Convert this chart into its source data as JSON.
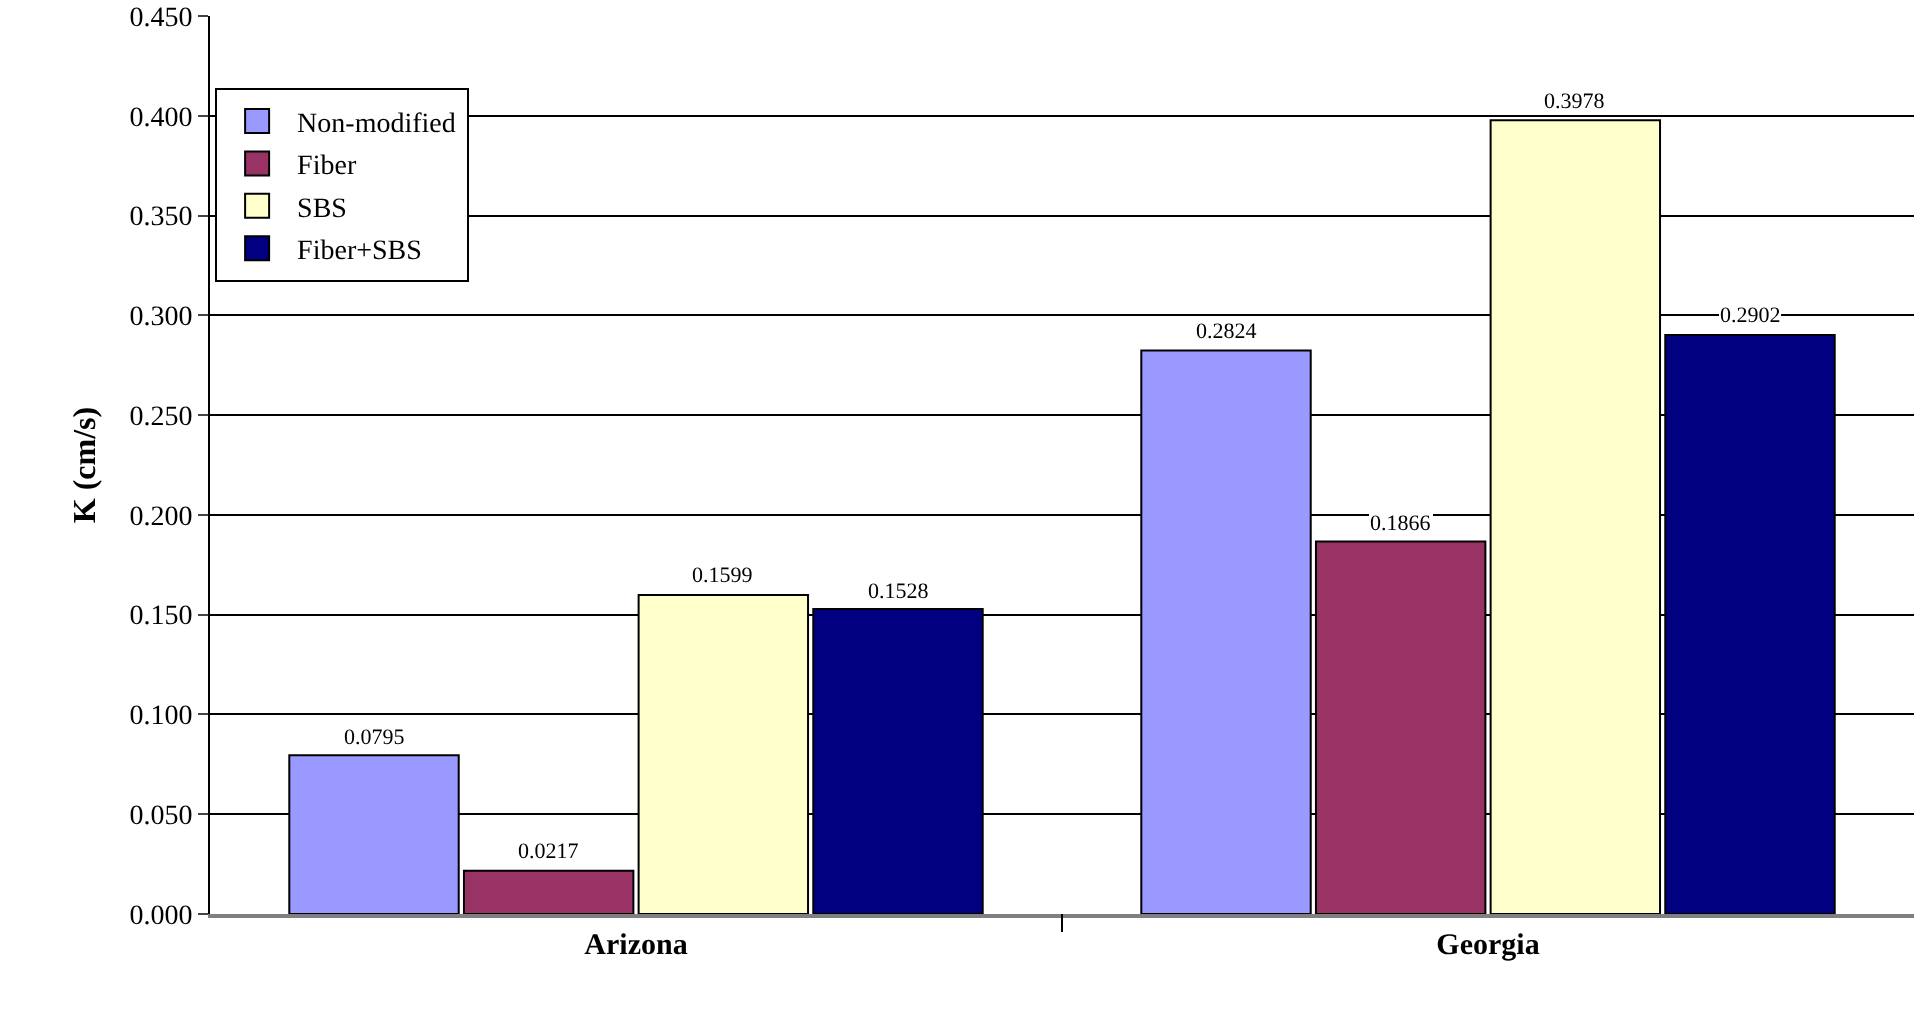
{
  "chart_data": {
    "type": "bar",
    "ylabel": "K (cm/s)",
    "categories": [
      "Arizona",
      "Georgia"
    ],
    "series": [
      {
        "name": "Non-modified",
        "color": "#9999ff",
        "values": [
          0.0795,
          0.2824
        ]
      },
      {
        "name": "Fiber",
        "color": "#993366",
        "values": [
          0.0217,
          0.1866
        ]
      },
      {
        "name": "SBS",
        "color": "#ffffcc",
        "values": [
          0.1599,
          0.3978
        ]
      },
      {
        "name": "Fiber+SBS",
        "color": "#000080",
        "values": [
          0.1528,
          0.2902
        ]
      }
    ],
    "ylim": [
      0,
      0.45
    ],
    "yticks": [
      "0.000",
      "0.050",
      "0.100",
      "0.150",
      "0.200",
      "0.250",
      "0.300",
      "0.350",
      "0.400",
      "0.450"
    ],
    "grid": "y",
    "legend": "top left",
    "data_labels": true
  }
}
